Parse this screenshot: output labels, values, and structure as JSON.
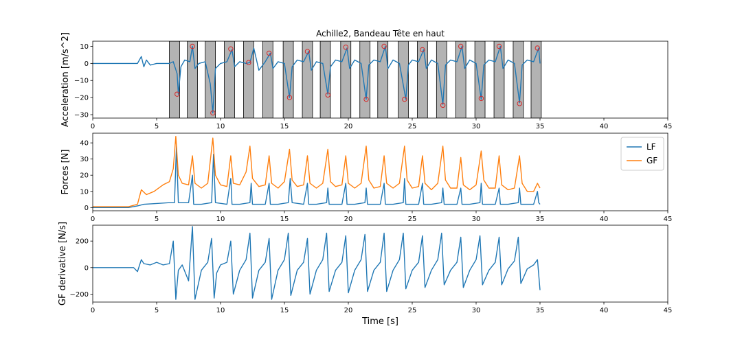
{
  "chart_data": [
    {
      "type": "line",
      "title": "Achille2, Bandeau Tête en haut",
      "xlabel": "",
      "ylabel": "Acceleration [m/s^2]",
      "xlim": [
        0,
        45
      ],
      "ylim": [
        -32,
        13
      ],
      "xticks": [
        0,
        5,
        10,
        15,
        20,
        25,
        30,
        35,
        40,
        45
      ],
      "yticks": [
        10,
        0,
        -10,
        -20,
        -30
      ],
      "series": [
        {
          "color": "#1f77b4",
          "x": [
            0,
            2,
            3.5,
            3.8,
            4.0,
            4.2,
            4.5,
            5.0,
            5.5,
            6.0,
            6.3,
            6.6,
            6.7,
            6.9,
            7.2,
            7.6,
            7.8,
            8.0,
            8.3,
            8.8,
            9.2,
            9.4,
            9.6,
            10.0,
            10.5,
            10.9,
            11.1,
            11.5,
            12.0,
            12.3,
            12.6,
            13.0,
            13.5,
            13.9,
            14.1,
            14.5,
            15.0,
            15.4,
            15.6,
            16.0,
            16.5,
            16.9,
            17.1,
            17.5,
            18.0,
            18.4,
            18.6,
            19.0,
            19.5,
            19.9,
            20.1,
            20.5,
            21.0,
            21.4,
            21.6,
            22.0,
            22.5,
            22.9,
            23.1,
            23.5,
            24.0,
            24.5,
            24.7,
            25.0,
            25.5,
            25.9,
            26.1,
            26.5,
            27.0,
            27.4,
            27.6,
            28.0,
            28.5,
            28.9,
            29.1,
            29.5,
            30.0,
            30.4,
            30.6,
            31.0,
            31.5,
            31.9,
            32.1,
            32.5,
            33.0,
            33.4,
            33.6,
            34.0,
            34.5,
            34.9,
            35.0
          ],
          "y": [
            0,
            0,
            0,
            4,
            -2,
            2,
            -1,
            0,
            0,
            0,
            1,
            -6,
            -18,
            -2,
            2,
            1,
            10,
            -3,
            0,
            1,
            -12,
            -29,
            -3,
            0,
            1,
            8,
            -2,
            1,
            0,
            0.5,
            9,
            -4,
            1,
            6,
            -3,
            1,
            0,
            -20,
            -2,
            2,
            1,
            7,
            -4,
            1,
            0,
            -18,
            -2,
            2,
            1,
            9,
            -3,
            2,
            0,
            -21,
            -1,
            2,
            1,
            10,
            -3,
            2,
            0,
            -21,
            -1,
            2,
            1,
            8,
            -3,
            2,
            0,
            -24,
            -1,
            2,
            1,
            10,
            -3,
            2,
            0,
            -21,
            -1,
            2,
            1,
            10,
            -3,
            2,
            0,
            -23,
            -1,
            2,
            1,
            9,
            0
          ]
        }
      ],
      "markers": {
        "color": "#d62728",
        "x": [
          6.6,
          7.8,
          9.4,
          10.8,
          12.2,
          13.8,
          15.4,
          16.8,
          18.4,
          19.8,
          21.4,
          22.8,
          24.4,
          25.8,
          27.4,
          28.8,
          30.4,
          31.8,
          33.4,
          34.8
        ],
        "y": [
          -18,
          10,
          -29,
          8.5,
          0.5,
          6,
          -20,
          7,
          -18.5,
          9.5,
          -21,
          10,
          -21,
          8,
          -24.5,
          10,
          -20.5,
          10,
          -23.5,
          9
        ]
      },
      "shaded_intervals": [
        [
          6.0,
          6.8
        ],
        [
          7.4,
          8.2
        ],
        [
          8.8,
          9.6
        ],
        [
          10.3,
          11.1
        ],
        [
          11.8,
          12.6
        ],
        [
          13.3,
          14.1
        ],
        [
          14.9,
          15.7
        ],
        [
          16.4,
          17.2
        ],
        [
          17.8,
          18.6
        ],
        [
          19.4,
          20.2
        ],
        [
          20.9,
          21.7
        ],
        [
          22.3,
          23.1
        ],
        [
          23.9,
          24.7
        ],
        [
          25.4,
          26.2
        ],
        [
          26.9,
          27.7
        ],
        [
          28.4,
          29.2
        ],
        [
          29.9,
          30.7
        ],
        [
          31.4,
          32.2
        ],
        [
          32.9,
          33.7
        ],
        [
          34.3,
          35.1
        ]
      ]
    },
    {
      "type": "line",
      "xlabel": "",
      "ylabel": "Forces [N]",
      "xlim": [
        0,
        45
      ],
      "ylim": [
        -2,
        46
      ],
      "xticks": [
        0,
        5,
        10,
        15,
        20,
        25,
        30,
        35,
        40,
        45
      ],
      "yticks": [
        0,
        10,
        20,
        30,
        40
      ],
      "legend": "top-right",
      "series": [
        {
          "name": "LF",
          "color": "#1f77b4",
          "x": [
            0,
            2.8,
            3.5,
            4.0,
            5.0,
            6.0,
            6.4,
            6.55,
            6.7,
            7.5,
            7.8,
            7.9,
            8.5,
            9.3,
            9.45,
            9.6,
            10.5,
            10.8,
            10.9,
            11.5,
            12.3,
            12.4,
            12.5,
            13.5,
            13.8,
            13.9,
            14.5,
            15.3,
            15.45,
            15.6,
            16.5,
            16.8,
            16.9,
            17.5,
            18.3,
            18.4,
            18.5,
            19.5,
            19.8,
            19.9,
            20.5,
            21.3,
            21.4,
            21.5,
            22.5,
            22.8,
            22.9,
            23.5,
            24.3,
            24.4,
            24.5,
            25.5,
            25.8,
            25.9,
            26.5,
            27.3,
            27.4,
            27.5,
            28.5,
            28.8,
            28.9,
            29.5,
            30.3,
            30.4,
            30.5,
            31.5,
            31.8,
            31.9,
            32.5,
            33.3,
            33.4,
            33.5,
            34.5,
            34.8,
            34.9,
            35.0
          ],
          "y": [
            0,
            0,
            1,
            2,
            2.5,
            3,
            3,
            38,
            3,
            3,
            20,
            2,
            2,
            3,
            33,
            3,
            2,
            18,
            2,
            2,
            3,
            15,
            2,
            2,
            15,
            2,
            2,
            3,
            18,
            3,
            2,
            15,
            2,
            2,
            3,
            12,
            2,
            2,
            15,
            2,
            2,
            3,
            12,
            2,
            2,
            15,
            2,
            2,
            3,
            18,
            2,
            2,
            15,
            2,
            2,
            3,
            12,
            2,
            2,
            12,
            2,
            2,
            3,
            15,
            2,
            2,
            12,
            2,
            2,
            3,
            12,
            2,
            2,
            10,
            3,
            2
          ]
        },
        {
          "name": "GF",
          "color": "#ff7f0e",
          "x": [
            0,
            2.8,
            3.5,
            3.8,
            4.2,
            4.8,
            5.5,
            6.0,
            6.3,
            6.5,
            6.7,
            7.0,
            7.5,
            7.8,
            8.0,
            8.5,
            9.0,
            9.4,
            9.6,
            10.0,
            10.5,
            10.8,
            11.0,
            11.5,
            12.0,
            12.3,
            12.5,
            13.0,
            13.5,
            13.8,
            14.0,
            14.5,
            15.0,
            15.4,
            15.6,
            16.0,
            16.5,
            16.8,
            17.0,
            17.5,
            18.0,
            18.4,
            18.6,
            19.0,
            19.5,
            19.8,
            20.0,
            20.5,
            21.0,
            21.4,
            21.6,
            22.0,
            22.5,
            22.8,
            23.0,
            23.5,
            24.0,
            24.4,
            24.6,
            25.0,
            25.5,
            25.8,
            26.0,
            26.5,
            27.0,
            27.4,
            27.6,
            28.0,
            28.5,
            28.8,
            29.0,
            29.5,
            30.0,
            30.4,
            30.6,
            31.0,
            31.5,
            31.8,
            32.0,
            32.5,
            33.0,
            33.4,
            33.6,
            34.0,
            34.5,
            34.8,
            35.0
          ],
          "y": [
            0.5,
            0.5,
            2,
            11,
            8,
            10,
            14,
            16,
            24,
            44,
            20,
            15,
            14,
            32,
            15,
            12,
            15,
            43,
            20,
            14,
            13,
            32,
            15,
            14,
            22,
            38,
            18,
            13,
            14,
            32,
            15,
            12,
            16,
            36,
            17,
            13,
            14,
            32,
            15,
            12,
            15,
            36,
            16,
            13,
            14,
            32,
            15,
            12,
            15,
            38,
            17,
            12,
            13,
            32,
            15,
            12,
            15,
            38,
            17,
            12,
            13,
            32,
            15,
            11,
            15,
            38,
            17,
            12,
            12,
            31,
            14,
            11,
            14,
            35,
            17,
            12,
            12,
            32,
            14,
            11,
            12,
            32,
            15,
            10,
            10,
            15,
            12
          ]
        }
      ]
    },
    {
      "type": "line",
      "xlabel": "Time [s]",
      "ylabel": "GF derivative [N/s]",
      "xlim": [
        0,
        45
      ],
      "ylim": [
        -260,
        320
      ],
      "xticks": [
        0,
        5,
        10,
        15,
        20,
        25,
        30,
        35,
        40,
        45
      ],
      "yticks": [
        200,
        0,
        -200
      ],
      "series": [
        {
          "color": "#1f77b4",
          "x": [
            0,
            3.2,
            3.5,
            3.8,
            4.0,
            4.5,
            5.0,
            5.5,
            6.0,
            6.3,
            6.5,
            6.7,
            7.0,
            7.5,
            7.8,
            8.0,
            8.5,
            9.0,
            9.3,
            9.5,
            9.7,
            10.0,
            10.5,
            10.8,
            11.0,
            11.5,
            12.0,
            12.3,
            12.5,
            13.0,
            13.5,
            13.8,
            14.0,
            14.5,
            15.0,
            15.3,
            15.5,
            16.0,
            16.5,
            16.8,
            17.0,
            17.5,
            18.0,
            18.3,
            18.5,
            19.0,
            19.5,
            19.8,
            20.0,
            20.5,
            21.0,
            21.3,
            21.5,
            22.0,
            22.5,
            22.8,
            23.0,
            23.5,
            24.0,
            24.3,
            24.5,
            25.0,
            25.5,
            25.8,
            26.0,
            26.5,
            27.0,
            27.3,
            27.5,
            28.0,
            28.5,
            28.8,
            29.0,
            29.5,
            30.0,
            30.3,
            30.5,
            31.0,
            31.5,
            31.8,
            32.0,
            32.5,
            33.0,
            33.3,
            33.5,
            34.0,
            34.5,
            34.8,
            35.0
          ],
          "y": [
            0,
            0,
            -30,
            60,
            30,
            20,
            40,
            20,
            30,
            200,
            -240,
            -20,
            20,
            -100,
            310,
            -240,
            -20,
            40,
            220,
            -230,
            -40,
            20,
            40,
            200,
            -200,
            -20,
            60,
            260,
            -230,
            -20,
            40,
            220,
            -240,
            -20,
            60,
            260,
            -210,
            -20,
            40,
            220,
            -200,
            -20,
            60,
            260,
            -180,
            -20,
            40,
            240,
            -190,
            -20,
            60,
            250,
            -180,
            -20,
            40,
            260,
            -180,
            -20,
            60,
            260,
            -160,
            -20,
            40,
            240,
            -150,
            -20,
            60,
            260,
            -130,
            -20,
            40,
            230,
            -150,
            -20,
            60,
            240,
            -130,
            -20,
            40,
            230,
            -130,
            -10,
            50,
            230,
            -120,
            -10,
            20,
            60,
            -170
          ]
        }
      ]
    }
  ]
}
